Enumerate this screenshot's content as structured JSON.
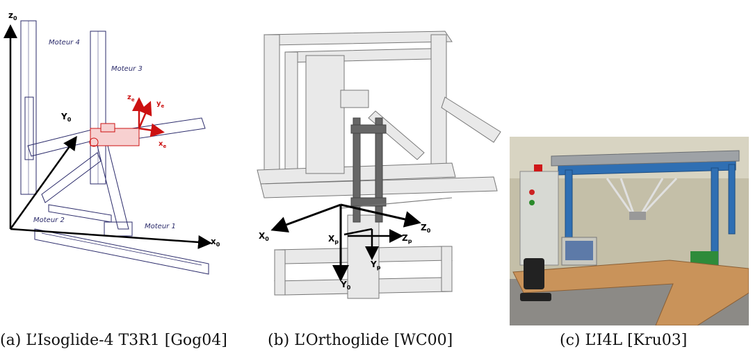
{
  "figure_a": {
    "motor_labels": [
      "Moteur 4",
      "Moteur 3",
      "Moteur 2",
      "Moteur 1"
    ],
    "axis_labels": {
      "z": "z",
      "z_sub": "0",
      "y": "Y",
      "y_sub": "0",
      "x": "x",
      "x_sub": "0"
    },
    "effector_axes": {
      "z": "z",
      "z_sub": "e",
      "y": "y",
      "y_sub": "e",
      "x": "x",
      "x_sub": "e"
    },
    "caption": "(a) L’Isoglide-4 T3R1 [Gog04]"
  },
  "figure_b": {
    "axis_labels": {
      "x0": "X",
      "x0_sub": "0",
      "y0": "Y",
      "y0_sub": "0",
      "z0": "Z",
      "z0_sub": "0",
      "xp": "X",
      "xp_sub": "p",
      "yp": "Y",
      "yp_sub": "p",
      "zp": "Z",
      "zp_sub": "p"
    },
    "caption": "(b) L’Orthoglide [WC00]"
  },
  "figure_c": {
    "caption": "(c) L’I4L [Kru03]"
  },
  "colors": {
    "frame_blue": "#2f6fb3",
    "schematic_ink": "#2a2a6a",
    "effector_red": "#cc1111",
    "desk_wood": "#c9935a"
  }
}
